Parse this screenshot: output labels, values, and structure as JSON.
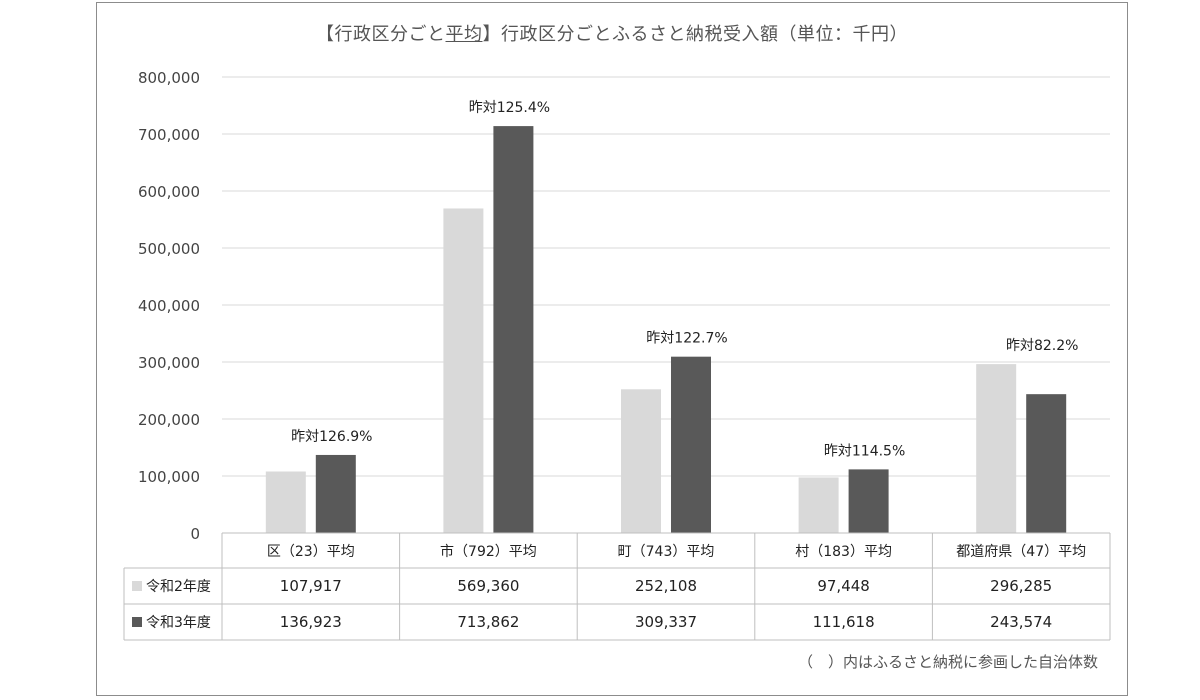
{
  "title": {
    "prefix": "【行政区分ごと",
    "underlined": "平均",
    "suffix": "】行政区分ごとふるさと納税受入額（単位：千円）"
  },
  "note": "（　）内はふるさと納税に参画した自治体数",
  "colors": {
    "series1": "#d9d9d9",
    "series2": "#595959",
    "grid": "#d9d9d9",
    "text": "#444444"
  },
  "chart_data": {
    "type": "bar",
    "categories": [
      "区（23）平均",
      "市（792）平均",
      "町（743）平均",
      "村（183）平均",
      "都道府県（47）平均"
    ],
    "series": [
      {
        "name": "令和2年度",
        "values": [
          107917,
          569360,
          252108,
          97448,
          296285
        ]
      },
      {
        "name": "令和3年度",
        "values": [
          136923,
          713862,
          309337,
          111618,
          243574
        ]
      }
    ],
    "y_ticks": [
      "0",
      "100,000",
      "200,000",
      "300,000",
      "400,000",
      "500,000",
      "600,000",
      "700,000",
      "800,000"
    ],
    "ylim": [
      0,
      800000
    ],
    "annotations": [
      "昨対126.9%",
      "昨対125.4%",
      "昨対122.7%",
      "昨対114.5%",
      "昨対82.2%"
    ],
    "table": {
      "rows": [
        {
          "label": "令和2年度",
          "cells": [
            "107,917",
            "569,360",
            "252,108",
            "97,448",
            "296,285"
          ]
        },
        {
          "label": "令和3年度",
          "cells": [
            "136,923",
            "713,862",
            "309,337",
            "111,618",
            "243,574"
          ]
        }
      ]
    },
    "grid": true
  }
}
